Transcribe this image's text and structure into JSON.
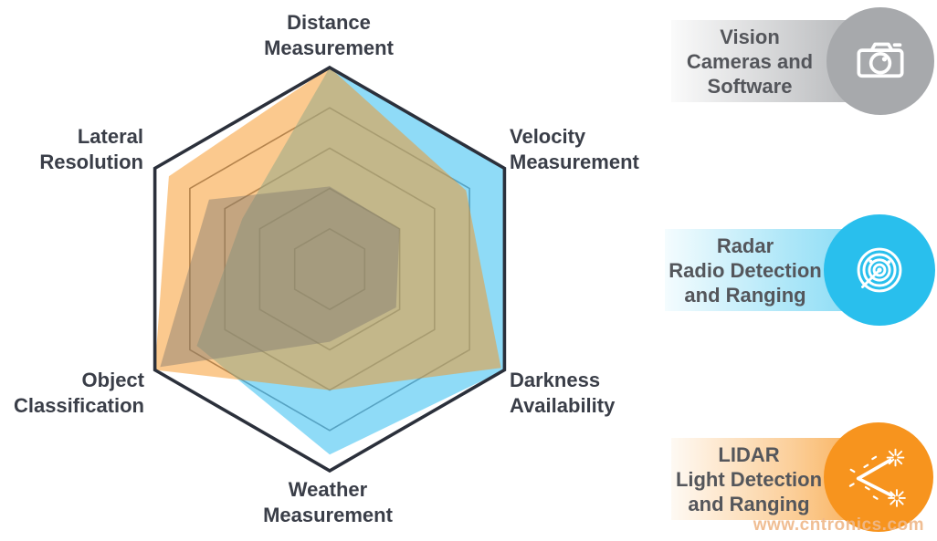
{
  "chart_data": {
    "type": "radar",
    "axes": [
      "Distance Measurement",
      "Velocity Measurement",
      "Darkness Availability",
      "Weather Measurement",
      "Object Classification",
      "Lateral Resolution"
    ],
    "scale_max": 5,
    "grid_levels": 5,
    "grid_color": "#71727A",
    "frame_color": "#2B303B",
    "series": [
      {
        "id": "radar",
        "name": "Radar Radio Detection and Ranging",
        "fill": "#45C3F2",
        "fill_opacity": 0.6,
        "values": [
          5,
          5,
          5,
          4.6,
          3.8,
          2.5
        ]
      },
      {
        "id": "lidar",
        "name": "LIDAR Light Detection and Ranging",
        "fill": "#F7941E",
        "fill_opacity": 0.5,
        "values": [
          5,
          3.9,
          4.9,
          3.0,
          5,
          4.6
        ]
      },
      {
        "id": "vision",
        "name": "Vision Cameras and Software",
        "fill": "#80796E",
        "fill_opacity": 0.45,
        "values": [
          2.05,
          2,
          1.9,
          1.8,
          4.85,
          3.45
        ]
      }
    ]
  },
  "labels": {
    "distance": {
      "line1": "Distance",
      "line2": "Measurement"
    },
    "velocity": {
      "line1": "Velocity",
      "line2": "Measurement"
    },
    "darkness": {
      "line1": "Darkness",
      "line2": "Availability"
    },
    "weather": {
      "line1": "Weather",
      "line2": "Measurement"
    },
    "object": {
      "line1": "Object",
      "line2": "Classification"
    },
    "lateral": {
      "line1": "Lateral",
      "line2": "Resolution"
    }
  },
  "legend": {
    "items": [
      {
        "id": "vision",
        "line1": "Vision",
        "line2": "Cameras and",
        "line3": "Software",
        "color": "#A7A9AC",
        "icon": "camera-icon"
      },
      {
        "id": "radar",
        "line1": "Radar",
        "line2": "Radio Detection",
        "line3": "and Ranging",
        "color": "#29BFED",
        "icon": "radar-icon"
      },
      {
        "id": "lidar",
        "line1": "LIDAR",
        "line2": "Light Detection",
        "line3": "and Ranging",
        "color": "#F7941E",
        "icon": "lidar-icon"
      }
    ]
  },
  "watermark": "www.cntronics.com"
}
